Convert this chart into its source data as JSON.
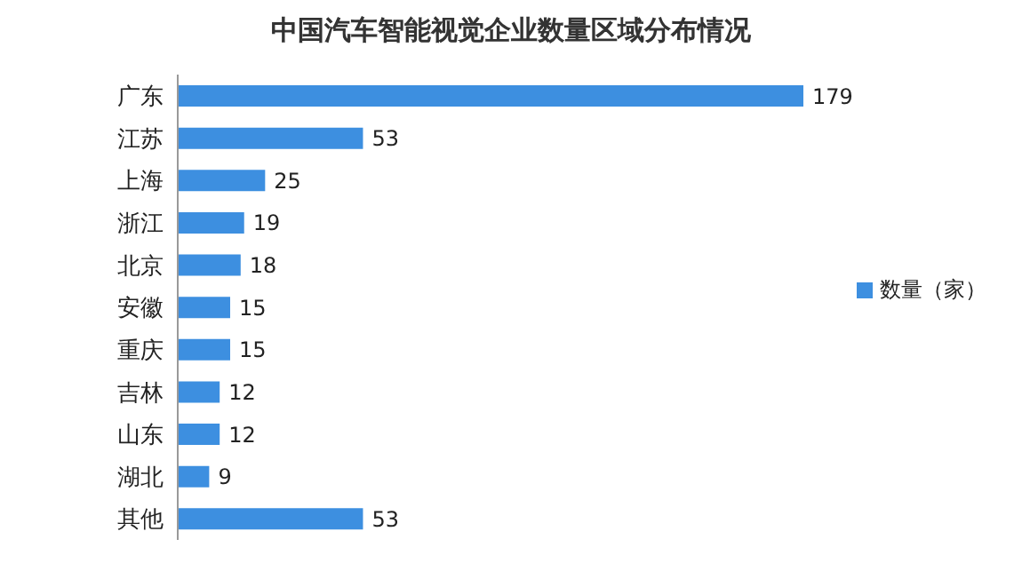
{
  "chart_data": {
    "type": "bar",
    "title": "中国汽车智能视觉企业数量区域分布情况",
    "orientation": "horizontal",
    "categories": [
      "广东",
      "江苏",
      "上海",
      "浙江",
      "北京",
      "安徽",
      "重庆",
      "吉林",
      "山东",
      "湖北",
      "其他"
    ],
    "series": [
      {
        "name": "数量（家）",
        "color": "#3d8fe0",
        "values": [
          179,
          53,
          25,
          19,
          18,
          15,
          15,
          12,
          12,
          9,
          53
        ]
      }
    ],
    "data_labels": true,
    "legend": "right",
    "grid": false
  }
}
